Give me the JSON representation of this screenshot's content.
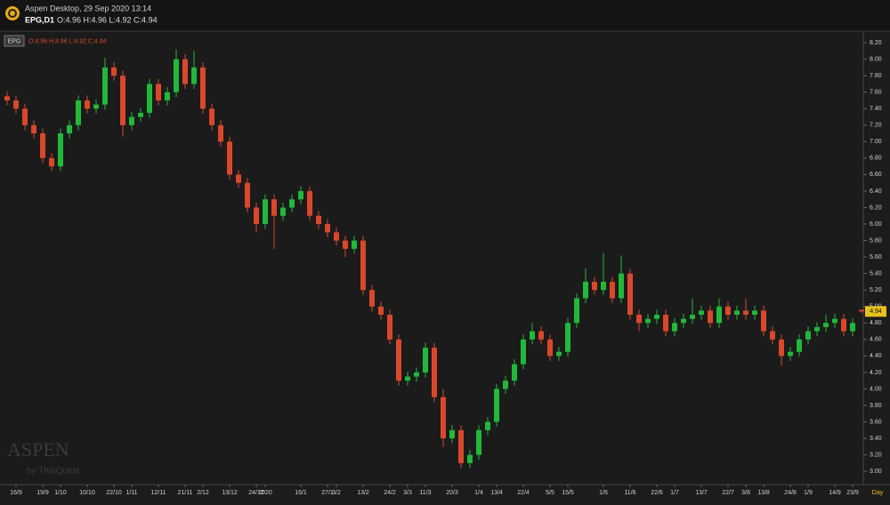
{
  "header": {
    "window_title": "Aspen Desktop, 29 Sep 2020 13:14",
    "symbol_line": "EPG,D1",
    "ohlc_line": "O:4.96 H:4.96 L:4.92 C:4.94"
  },
  "chart_data": {
    "type": "candlestick",
    "symbol": "EPG",
    "ohlc_label": "O:4.96 H:4.96 L:4.92 C:4.94",
    "watermark": "ASPEN",
    "watermark_sub": "by ThaiQuest",
    "x_unit": "Day",
    "up_color": "#22b83a",
    "down_color": "#d9482b",
    "grid": false,
    "categories": [
      null,
      "16/9",
      null,
      null,
      "19/9",
      null,
      "1/10",
      null,
      null,
      "10/10",
      null,
      null,
      "22/10",
      null,
      "1/11",
      null,
      null,
      "12/11",
      null,
      null,
      "21/11",
      null,
      "2/12",
      null,
      null,
      "13/12",
      null,
      null,
      "24/12",
      "2020",
      null,
      null,
      null,
      "16/1",
      null,
      null,
      "27/1",
      "3/2",
      null,
      null,
      "13/2",
      null,
      null,
      "24/2",
      null,
      "3/3",
      null,
      "11/3",
      null,
      null,
      "20/3",
      null,
      null,
      "1/4",
      null,
      "13/4",
      null,
      null,
      "22/4",
      null,
      null,
      "5/5",
      null,
      "15/5",
      null,
      null,
      null,
      "1/6",
      null,
      null,
      "11/6",
      null,
      null,
      "22/6",
      null,
      "1/7",
      null,
      null,
      "13/7",
      null,
      null,
      "22/7",
      null,
      "3/8",
      null,
      "13/8",
      null,
      null,
      "24/8",
      null,
      "1/9",
      null,
      null,
      "14/9",
      null,
      "23/9",
      null
    ],
    "open": [
      7.55,
      7.5,
      7.4,
      7.2,
      7.1,
      6.8,
      6.7,
      7.1,
      7.2,
      7.5,
      7.4,
      7.45,
      7.9,
      7.8,
      7.2,
      7.3,
      7.35,
      7.7,
      7.5,
      7.6,
      8.0,
      7.7,
      7.9,
      7.4,
      7.2,
      7.0,
      6.6,
      6.5,
      6.2,
      6.0,
      6.3,
      6.1,
      6.2,
      6.3,
      6.4,
      6.1,
      6.0,
      5.9,
      5.8,
      5.7,
      5.8,
      5.2,
      5.0,
      4.9,
      4.6,
      4.1,
      4.15,
      4.2,
      4.5,
      3.9,
      3.4,
      3.5,
      3.1,
      3.2,
      3.5,
      3.6,
      4.0,
      4.1,
      4.3,
      4.6,
      4.7,
      4.6,
      4.4,
      4.45,
      4.8,
      5.1,
      5.3,
      5.2,
      5.3,
      5.1,
      5.4,
      4.9,
      4.8,
      4.85,
      4.9,
      4.7,
      4.8,
      4.85,
      4.9,
      4.95,
      4.8,
      5.0,
      4.9,
      4.95,
      4.9,
      4.95,
      4.7,
      4.6,
      4.4,
      4.45,
      4.6,
      4.7,
      4.75,
      4.8,
      4.85,
      4.7,
      4.96
    ],
    "high": [
      7.61,
      7.56,
      7.46,
      7.26,
      7.16,
      6.86,
      7.16,
      7.26,
      7.56,
      7.56,
      7.51,
      8.02,
      7.96,
      7.86,
      7.36,
      7.41,
      7.76,
      7.76,
      7.66,
      8.12,
      8.06,
      8.1,
      7.96,
      7.46,
      7.26,
      7.06,
      6.66,
      6.56,
      6.26,
      6.36,
      6.36,
      6.26,
      6.36,
      6.46,
      6.46,
      6.16,
      6.06,
      5.96,
      5.86,
      5.86,
      5.86,
      5.26,
      5.06,
      4.96,
      4.66,
      4.21,
      4.26,
      4.56,
      4.56,
      4.0,
      3.56,
      3.56,
      3.26,
      3.56,
      3.66,
      4.06,
      4.16,
      4.36,
      4.66,
      4.8,
      4.76,
      4.66,
      4.51,
      4.86,
      5.16,
      5.46,
      5.36,
      5.65,
      5.36,
      5.62,
      5.46,
      4.96,
      4.91,
      4.96,
      4.96,
      4.86,
      4.91,
      5.1,
      5.01,
      5.01,
      5.1,
      5.06,
      5.01,
      5.1,
      5.01,
      5.01,
      4.76,
      4.66,
      4.51,
      4.66,
      4.76,
      4.81,
      4.9,
      4.91,
      4.91,
      4.86,
      4.96
    ],
    "low": [
      7.44,
      7.34,
      7.14,
      7.04,
      6.74,
      6.64,
      6.64,
      7.04,
      7.14,
      7.34,
      7.34,
      7.39,
      7.74,
      7.06,
      7.14,
      7.24,
      7.29,
      7.44,
      7.44,
      7.54,
      7.64,
      7.64,
      7.34,
      7.14,
      6.94,
      6.54,
      6.44,
      6.14,
      5.9,
      5.94,
      5.7,
      6.04,
      6.14,
      6.24,
      6.04,
      5.94,
      5.84,
      5.74,
      5.6,
      5.64,
      5.14,
      4.94,
      4.84,
      4.54,
      4.04,
      4.04,
      4.09,
      4.14,
      3.84,
      3.3,
      3.34,
      3.04,
      3.04,
      3.14,
      3.44,
      3.54,
      3.94,
      4.04,
      4.24,
      4.54,
      4.54,
      4.34,
      4.34,
      4.39,
      4.74,
      5.04,
      5.14,
      5.14,
      5.04,
      5.04,
      4.84,
      4.7,
      4.74,
      4.79,
      4.64,
      4.64,
      4.74,
      4.79,
      4.84,
      4.74,
      4.74,
      4.84,
      4.84,
      4.84,
      4.84,
      4.64,
      4.54,
      4.28,
      4.34,
      4.39,
      4.54,
      4.64,
      4.69,
      4.74,
      4.64,
      4.64,
      4.92
    ],
    "close": [
      7.5,
      7.4,
      7.2,
      7.1,
      6.8,
      6.7,
      7.1,
      7.2,
      7.5,
      7.4,
      7.45,
      7.9,
      7.8,
      7.2,
      7.3,
      7.35,
      7.7,
      7.5,
      7.6,
      8.0,
      7.7,
      7.9,
      7.4,
      7.2,
      7.0,
      6.6,
      6.5,
      6.2,
      6.0,
      6.3,
      6.1,
      6.2,
      6.3,
      6.4,
      6.1,
      6.0,
      5.9,
      5.8,
      5.7,
      5.8,
      5.2,
      5.0,
      4.9,
      4.6,
      4.1,
      4.15,
      4.2,
      4.5,
      3.9,
      3.4,
      3.5,
      3.1,
      3.2,
      3.5,
      3.6,
      4.0,
      4.1,
      4.3,
      4.6,
      4.7,
      4.6,
      4.4,
      4.45,
      4.8,
      5.1,
      5.3,
      5.2,
      5.3,
      5.1,
      5.4,
      4.9,
      4.8,
      4.85,
      4.9,
      4.7,
      4.8,
      4.85,
      4.9,
      4.95,
      4.8,
      5.0,
      4.9,
      4.95,
      4.9,
      4.95,
      4.7,
      4.6,
      4.4,
      4.45,
      4.6,
      4.7,
      4.75,
      4.8,
      4.85,
      4.7,
      4.8,
      4.94
    ],
    "ylim": [
      2.84,
      8.33
    ],
    "yticks": [
      {
        "value": 3,
        "label": "3.00"
      },
      {
        "value": 3.2,
        "label": "3.20"
      },
      {
        "value": 3.4,
        "label": "3.40"
      },
      {
        "value": 3.6,
        "label": "3.60"
      },
      {
        "value": 3.8,
        "label": "3.80"
      },
      {
        "value": 4,
        "label": "4.00"
      },
      {
        "value": 4.2,
        "label": "4.20"
      },
      {
        "value": 4.4,
        "label": "4.40"
      },
      {
        "value": 4.6,
        "label": "4.60"
      },
      {
        "value": 4.8,
        "label": "4.80"
      },
      {
        "value": 5,
        "label": "5.00"
      },
      {
        "value": 5.2,
        "label": "5.20"
      },
      {
        "value": 5.4,
        "label": "5.40"
      },
      {
        "value": 5.6,
        "label": "5.60"
      },
      {
        "value": 5.8,
        "label": "5.80"
      },
      {
        "value": 6,
        "label": "6.00"
      },
      {
        "value": 6.2,
        "label": "6.20"
      },
      {
        "value": 6.4,
        "label": "6.40"
      },
      {
        "value": 6.6,
        "label": "6.60"
      },
      {
        "value": 6.8,
        "label": "6.80"
      },
      {
        "value": 7,
        "label": "7.00"
      },
      {
        "value": 7.2,
        "label": "7.20"
      },
      {
        "value": 7.4,
        "label": "7.40"
      },
      {
        "value": 7.6,
        "label": "7.60"
      },
      {
        "value": 7.8,
        "label": "7.80"
      },
      {
        "value": 8,
        "label": "8.00"
      },
      {
        "value": 8.2,
        "label": "8.20"
      }
    ]
  }
}
